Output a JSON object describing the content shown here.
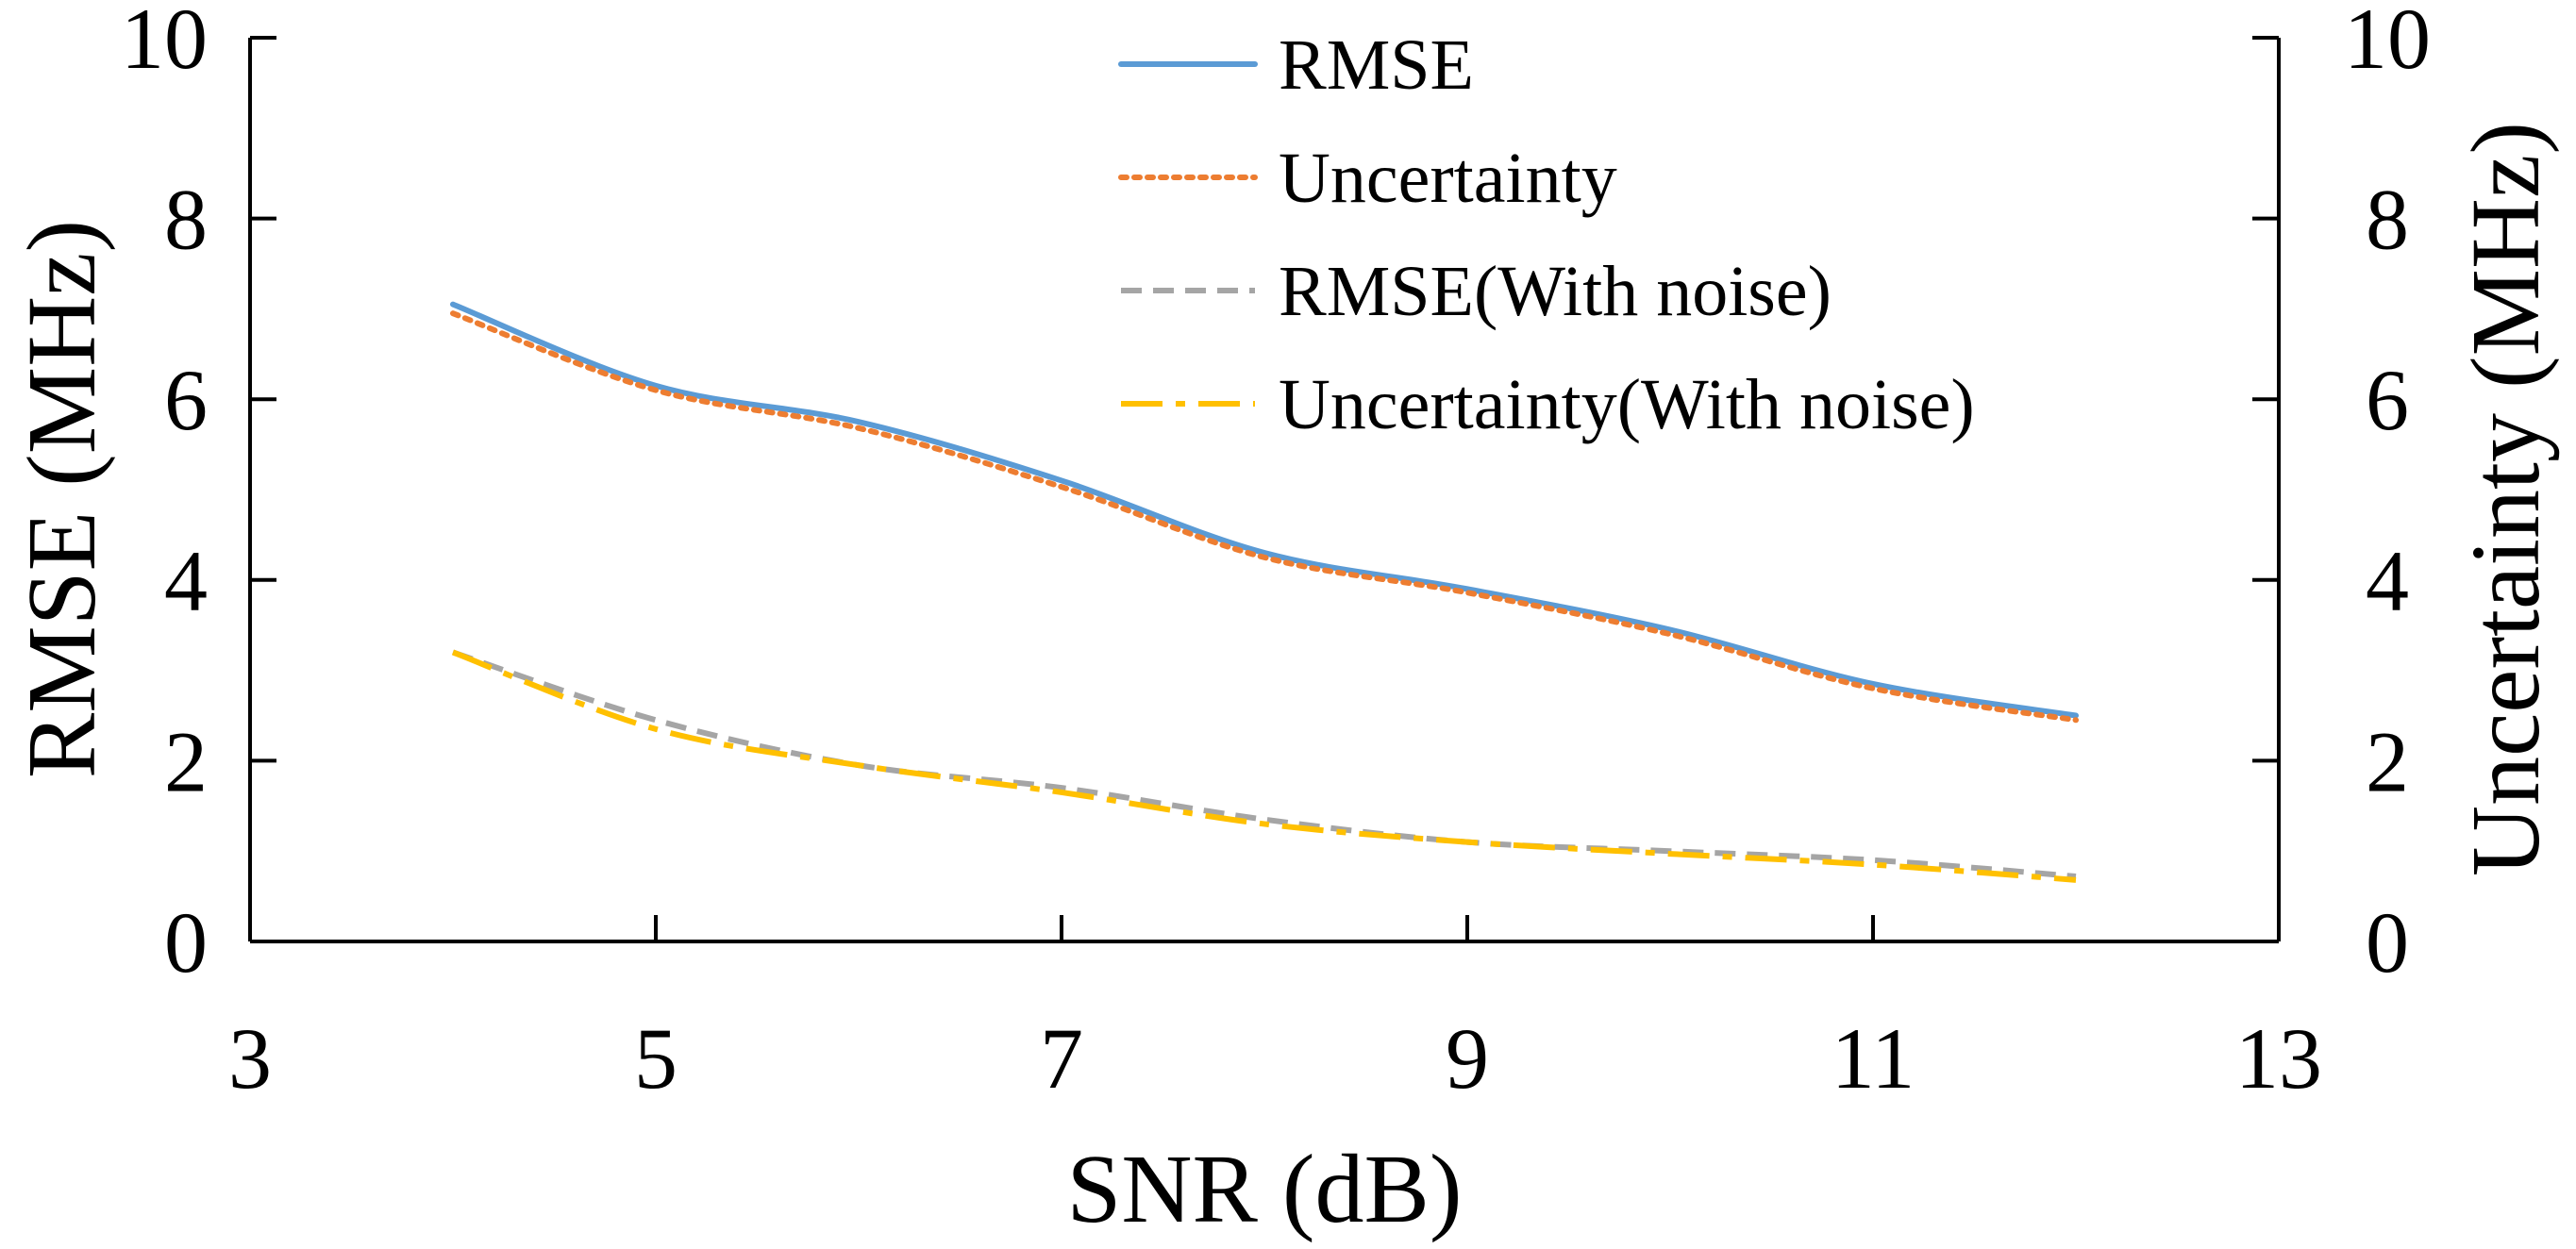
{
  "chart_data": {
    "type": "line",
    "title": "",
    "xlabel": "SNR (dB)",
    "ylabel": "RMSE (MHz)",
    "y2label": "Uncertainty (MHz)",
    "xlim": [
      3,
      13
    ],
    "ylim": [
      0,
      10
    ],
    "y2lim": [
      0,
      10
    ],
    "xticks": [
      3,
      5,
      7,
      9,
      11,
      13
    ],
    "yticks": [
      0,
      2,
      4,
      6,
      8,
      10
    ],
    "y2ticks": [
      0,
      2,
      4,
      6,
      8,
      10
    ],
    "grid": false,
    "legend_position": "top-center",
    "x": [
      4,
      5,
      6,
      7,
      8,
      9,
      10,
      11,
      12
    ],
    "series": [
      {
        "name": "RMSE",
        "axis": "left",
        "color": "#5B9BD5",
        "dash": "solid",
        "values": [
          7.05,
          6.15,
          5.75,
          5.1,
          4.3,
          3.9,
          3.45,
          2.85,
          2.5
        ]
      },
      {
        "name": "Uncertainty",
        "axis": "right",
        "color": "#ED7D31",
        "dash": "dotted",
        "values": [
          6.95,
          6.1,
          5.68,
          5.03,
          4.25,
          3.86,
          3.4,
          2.8,
          2.45
        ]
      },
      {
        "name": "RMSE(With noise)",
        "axis": "left",
        "color": "#A5A5A5",
        "dash": "dashed",
        "values": [
          3.2,
          2.45,
          1.95,
          1.7,
          1.35,
          1.1,
          1.0,
          0.9,
          0.72
        ]
      },
      {
        "name": "Uncertainty(With noise)",
        "axis": "right",
        "color": "#FFC000",
        "dash": "dashdot",
        "values": [
          3.2,
          2.35,
          1.95,
          1.65,
          1.3,
          1.1,
          0.97,
          0.85,
          0.68
        ]
      }
    ]
  }
}
